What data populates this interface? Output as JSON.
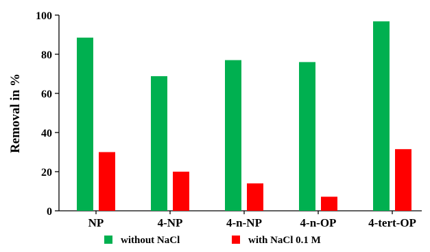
{
  "chart_data": {
    "type": "bar",
    "title": "",
    "xlabel": "",
    "ylabel": "Removal in %",
    "ylim": [
      0,
      100
    ],
    "yticks": [
      0,
      20,
      40,
      60,
      80,
      100
    ],
    "grid": false,
    "legend_position": "bottom",
    "categories": [
      "NP",
      "4-NP",
      "4-n-NP",
      "4-n-OP",
      "4-tert-OP"
    ],
    "series": [
      {
        "name": "without NaCl",
        "color": "#00b050",
        "values": [
          88.5,
          68.8,
          77,
          76,
          96.8
        ]
      },
      {
        "name": "with NaCl 0.1 M",
        "color": "#ff0000",
        "values": [
          30,
          20,
          14,
          7.2,
          31.5
        ]
      }
    ]
  }
}
